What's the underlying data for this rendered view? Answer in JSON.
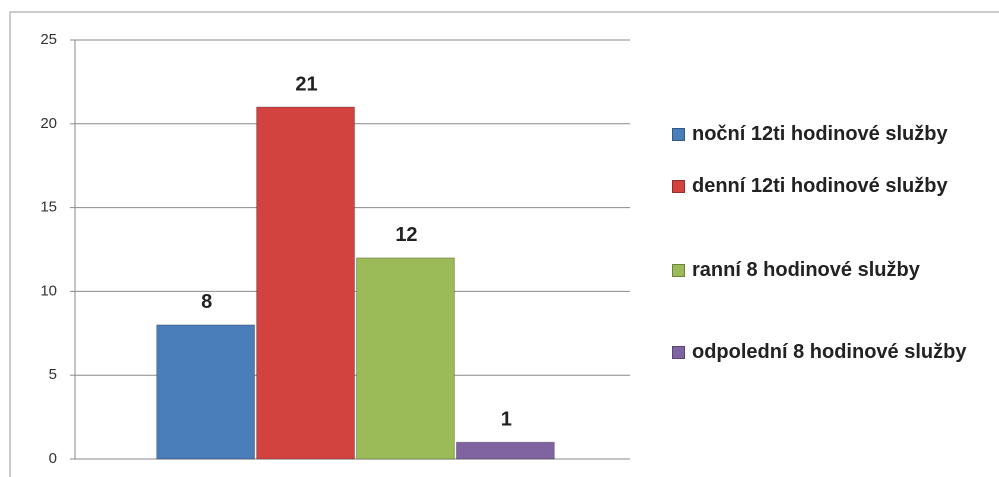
{
  "chart_data": {
    "type": "bar",
    "categories": [
      null
    ],
    "series": [
      {
        "name": "noční 12ti hodinové služby",
        "color": "#4a7ebb",
        "values": [
          8
        ]
      },
      {
        "name": "denní 12ti hodinové služby",
        "color": "#d2433f",
        "values": [
          21
        ]
      },
      {
        "name": "ranní 8 hodinové služby",
        "color": "#9bbb59",
        "values": [
          12
        ]
      },
      {
        "name": "odpolední 8 hodinové služby",
        "color": "#8064a2",
        "values": [
          1
        ]
      }
    ],
    "ylim": [
      0,
      25
    ],
    "yticks": [
      0,
      5,
      10,
      15,
      20,
      25
    ],
    "grid": true,
    "legend": "right"
  }
}
